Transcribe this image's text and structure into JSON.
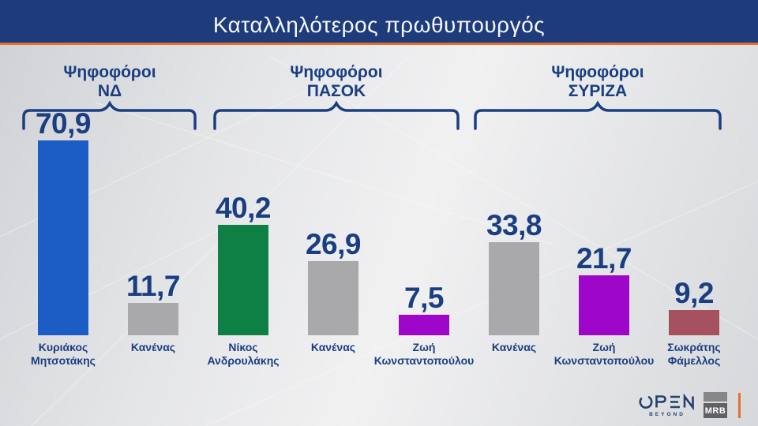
{
  "title": "Καταλληλότερος πρωθυπουργός",
  "colors": {
    "title_bar": "#1e3c7c",
    "accent_orange": "#e4702d",
    "navy_text": "#1a3e82",
    "bar_gray": "#a9a9ab"
  },
  "chart_data": {
    "type": "bar",
    "title": "Καταλληλότερος πρωθυπουργός",
    "unit": "%",
    "decimal_style": "comma",
    "ylim": [
      0,
      75
    ],
    "grid": false,
    "legend": "none",
    "groups": [
      {
        "label": "Ψηφοφόροι\nΝΔ",
        "bars": [
          {
            "name": "Κυριάκος\nΜητσοτάκης",
            "value": 70.9,
            "display": "70,9",
            "color": "#1b5dc4"
          },
          {
            "name": "Κανένας",
            "value": 11.7,
            "display": "11,7",
            "color": "#a9a9ab"
          }
        ]
      },
      {
        "label": "Ψηφοφόροι\nΠΑΣΟΚ",
        "bars": [
          {
            "name": "Νίκος\nΑνδρουλάκης",
            "value": 40.2,
            "display": "40,2",
            "color": "#0e8045"
          },
          {
            "name": "Κανένας",
            "value": 26.9,
            "display": "26,9",
            "color": "#a9a9ab"
          },
          {
            "name": "Ζωή\nΚωνσταντοπούλου",
            "value": 7.5,
            "display": "7,5",
            "color": "#9e06ca"
          }
        ]
      },
      {
        "label": "Ψηφοφόροι\nΣΥΡΙΖΑ",
        "bars": [
          {
            "name": "Κανένας",
            "value": 33.8,
            "display": "33,8",
            "color": "#a9a9ab"
          },
          {
            "name": "Ζωή\nΚωνσταντοπούλου",
            "value": 21.7,
            "display": "21,7",
            "color": "#9e06ca"
          },
          {
            "name": "Σωκράτης\nΦάμελλος",
            "value": 9.2,
            "display": "9,2",
            "color": "#a5515f"
          }
        ]
      }
    ]
  },
  "footer": {
    "channel_logo": "OPEN",
    "channel_tagline": "BEYOND",
    "agency_logo": "MRB"
  }
}
